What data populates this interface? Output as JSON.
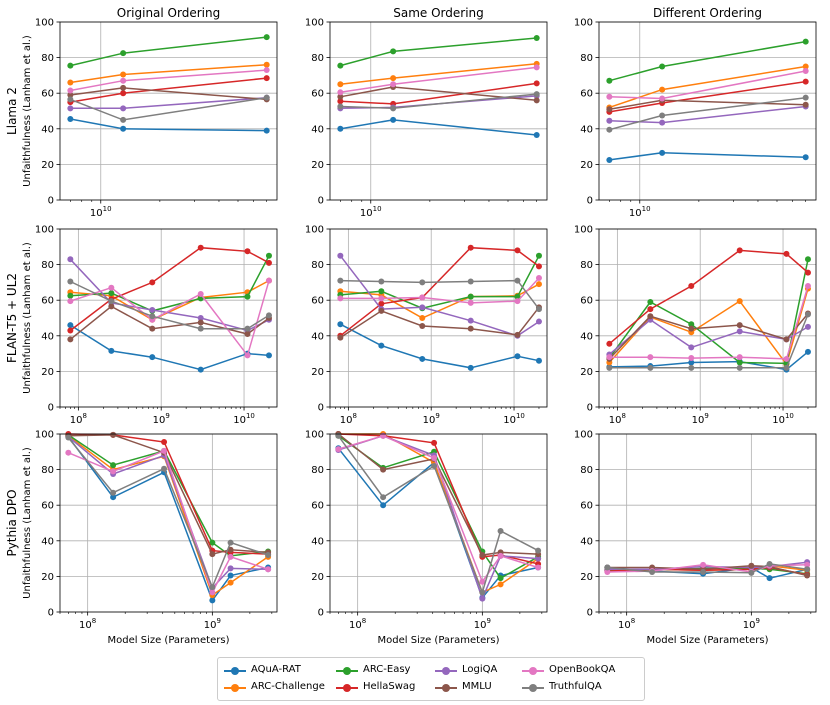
{
  "colors": {
    "AQuA-RAT": "#1f77b4",
    "ARC-Challenge": "#ff7f0e",
    "ARC-Easy": "#2ca02c",
    "HellaSwag": "#d62728",
    "LogiQA": "#9467bd",
    "MMLU": "#8c564b",
    "OpenBookQA": "#e377c2",
    "TruthfulQA": "#7f7f7f"
  },
  "legend": {
    "entries": [
      "AQuA-RAT",
      "ARC-Challenge",
      "ARC-Easy",
      "HellaSwag",
      "LogiQA",
      "MMLU",
      "OpenBookQA",
      "TruthfulQA"
    ]
  },
  "chart_data": {
    "type": "line",
    "column_titles": [
      "Original Ordering",
      "Same Ordering",
      "Different Ordering"
    ],
    "row_labels": [
      "Llama 2",
      "FLAN-T5 + UL2",
      "Pythia DPO"
    ],
    "ylabel": "Unfaithfulness (Lanham et al.)",
    "xlabel": "Model Size (Parameters)",
    "ylim": [
      0,
      100
    ],
    "yticks": [
      0,
      20,
      40,
      60,
      80,
      100
    ],
    "rows": [
      {
        "x": [
          7000000000.0,
          13000000000.0,
          70000000000.0
        ],
        "xlim": [
          6200000000.0,
          79000000000.0
        ],
        "xticks": [
          {
            "value": 10000000000.0,
            "label": "10^10"
          }
        ],
        "panels": [
          {
            "AQuA-RAT": [
              45.5,
              40,
              39
            ],
            "ARC-Challenge": [
              66,
              70.5,
              76
            ],
            "ARC-Easy": [
              75.5,
              82.5,
              91.5
            ],
            "HellaSwag": [
              55,
              60,
              68.5
            ],
            "LogiQA": [
              51.5,
              51.5,
              57.5
            ],
            "MMLU": [
              59,
              63,
              56.5
            ],
            "OpenBookQA": [
              61.5,
              67,
              73
            ],
            "TruthfulQA": [
              56.5,
              45,
              57.5
            ]
          },
          {
            "AQuA-RAT": [
              40,
              45,
              36.5
            ],
            "ARC-Challenge": [
              65,
              68.5,
              76.5
            ],
            "ARC-Easy": [
              75.5,
              83.5,
              91
            ],
            "HellaSwag": [
              55.5,
              54,
              65.5
            ],
            "LogiQA": [
              51.5,
              52,
              58.5
            ],
            "MMLU": [
              58,
              63.5,
              56
            ],
            "OpenBookQA": [
              60.5,
              65,
              74.5
            ],
            "TruthfulQA": [
              52.5,
              51.5,
              59.5
            ]
          },
          {
            "AQuA-RAT": [
              22.5,
              26.5,
              24
            ],
            "ARC-Challenge": [
              52,
              62,
              75
            ],
            "ARC-Easy": [
              67,
              75,
              89
            ],
            "HellaSwag": [
              49.5,
              54.5,
              66.5
            ],
            "LogiQA": [
              44.5,
              43.5,
              52.5
            ],
            "MMLU": [
              51,
              56,
              53.5
            ],
            "OpenBookQA": [
              58,
              57,
              72.5
            ],
            "TruthfulQA": [
              39.5,
              47.5,
              57.5
            ]
          }
        ]
      },
      {
        "x": [
          80000000.0,
          250000000.0,
          780000000.0,
          3000000000.0,
          11000000000.0,
          20000000000.0
        ],
        "xlim": [
          60000000.0,
          25000000000.0
        ],
        "xticks": [
          {
            "value": 100000000.0,
            "label": "10^8"
          },
          {
            "value": 1000000000.0,
            "label": "10^9"
          },
          {
            "value": 10000000000.0,
            "label": "10^10"
          }
        ],
        "panels": [
          {
            "AQuA-RAT": [
              46,
              31.5,
              28,
              21,
              30,
              29
            ],
            "ARC-Challenge": [
              64.5,
              62.5,
              49,
              61.5,
              64.5,
              71
            ],
            "ARC-Easy": [
              62.5,
              64,
              54,
              61,
              62,
              85
            ],
            "HellaSwag": [
              43,
              60.5,
              70,
              89.5,
              87.5,
              81
            ],
            "LogiQA": [
              83,
              58.5,
              54.5,
              50,
              43,
              49
            ],
            "MMLU": [
              38,
              56.5,
              44,
              47.5,
              41,
              50
            ],
            "OpenBookQA": [
              59.5,
              67,
              49,
              63.5,
              29,
              71
            ],
            "TruthfulQA": [
              70.5,
              59.5,
              51,
              44,
              44,
              51.5
            ]
          },
          {
            "AQuA-RAT": [
              46.5,
              34.5,
              27,
              22,
              28.5,
              26
            ],
            "ARC-Challenge": [
              65,
              63,
              50,
              62,
              62.5,
              69
            ],
            "ARC-Easy": [
              63,
              65,
              55.5,
              62,
              62,
              85
            ],
            "HellaSwag": [
              40,
              58,
              61.5,
              89.5,
              88,
              79
            ],
            "LogiQA": [
              85,
              55,
              56,
              48.5,
              40,
              48
            ],
            "MMLU": [
              39,
              54,
              45.5,
              44,
              40.5,
              56
            ],
            "OpenBookQA": [
              61,
              61,
              61.5,
              58.5,
              59.5,
              72.5
            ],
            "TruthfulQA": [
              71,
              70.5,
              70,
              70.5,
              71,
              55
            ]
          },
          {
            "AQuA-RAT": [
              22.5,
              23,
              25,
              25.5,
              21,
              31
            ],
            "ARC-Challenge": [
              25,
              50.5,
              42,
              59.5,
              24,
              66.5
            ],
            "ARC-Easy": [
              27.5,
              59,
              46.5,
              25,
              24.5,
              83
            ],
            "HellaSwag": [
              35.5,
              55,
              68,
              88,
              86,
              75.5
            ],
            "LogiQA": [
              29.5,
              49,
              33.5,
              42.5,
              38,
              45
            ],
            "MMLU": [
              27,
              51,
              44,
              46,
              38,
              52.5
            ],
            "OpenBookQA": [
              28,
              28,
              27.5,
              28,
              27,
              68
            ],
            "TruthfulQA": [
              22,
              22,
              22,
              22,
              22,
              52
            ]
          }
        ]
      },
      {
        "x": [
          70000000.0,
          160000000.0,
          410000000.0,
          1000000000.0,
          1400000000.0,
          2800000000.0
        ],
        "xlim": [
          60000000.0,
          3300000000.0
        ],
        "xticks": [
          {
            "value": 100000000.0,
            "label": "10^8"
          },
          {
            "value": 1000000000.0,
            "label": "10^9"
          }
        ],
        "panels": [
          {
            "AQuA-RAT": [
              98.5,
              64.5,
              78.5,
              6.5,
              20.5,
              25
            ],
            "ARC-Challenge": [
              99,
              80,
              87.5,
              9.5,
              16.5,
              31
            ],
            "ARC-Easy": [
              99.5,
              82.5,
              90.5,
              39,
              31.5,
              34
            ],
            "HellaSwag": [
              100,
              99.5,
              95.5,
              34.5,
              33.5,
              32.5
            ],
            "LogiQA": [
              98.5,
              77.5,
              88,
              13.5,
              24.5,
              24
            ],
            "MMLU": [
              99,
              99.5,
              89.5,
              32.5,
              35,
              33.5
            ],
            "OpenBookQA": [
              89.5,
              79,
              90.5,
              11,
              31,
              24
            ],
            "TruthfulQA": [
              98,
              67,
              80.5,
              14,
              39,
              32
            ]
          },
          {
            "AQuA-RAT": [
              92,
              60,
              84,
              8,
              20.5,
              25
            ],
            "ARC-Challenge": [
              100,
              100,
              84,
              11,
              15.5,
              30
            ],
            "ARC-Easy": [
              99,
              81,
              90,
              34,
              19,
              31
            ],
            "HellaSwag": [
              100,
              99,
              95,
              31,
              32,
              27
            ],
            "LogiQA": [
              91,
              99,
              88,
              7.5,
              31.5,
              30
            ],
            "MMLU": [
              100,
              80,
              86,
              32,
              33.5,
              32.5
            ],
            "OpenBookQA": [
              91.5,
              99,
              86.5,
              17,
              31.5,
              25
            ],
            "TruthfulQA": [
              99,
              64.5,
              82,
              11,
              45.5,
              34.5
            ]
          },
          {
            "AQuA-RAT": [
              25,
              23,
              21.5,
              25,
              19,
              24
            ],
            "ARC-Challenge": [
              24,
              24,
              23.5,
              24,
              26,
              23.5
            ],
            "ARC-Easy": [
              23.5,
              23.5,
              24.5,
              24.5,
              24,
              21.5
            ],
            "HellaSwag": [
              23,
              24,
              23.5,
              24,
              25,
              21
            ],
            "LogiQA": [
              24,
              24,
              25.5,
              25,
              25.5,
              28
            ],
            "MMLU": [
              25,
              25,
              24,
              26,
              25.5,
              20.5
            ],
            "OpenBookQA": [
              22.5,
              23,
              26.5,
              22.5,
              26,
              26.5
            ],
            "TruthfulQA": [
              25,
              22.5,
              22.5,
              22,
              27,
              24
            ]
          }
        ]
      }
    ]
  }
}
